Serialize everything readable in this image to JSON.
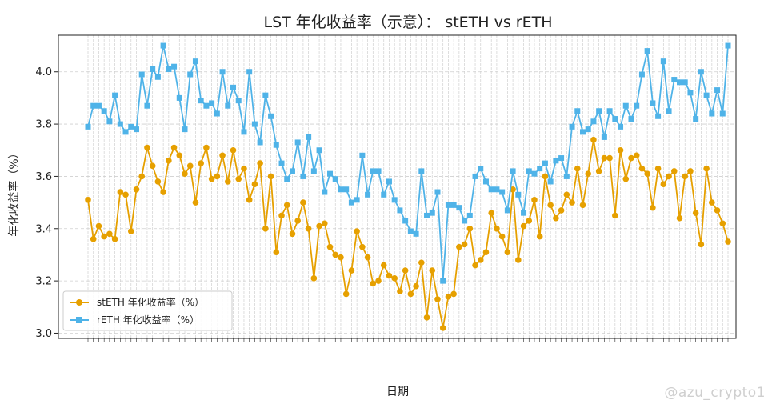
{
  "chart_data": {
    "type": "line",
    "title": "LST 年化收益率（示意）： stETH vs rETH",
    "xlabel": "日期",
    "ylabel": "年化收益率（%）",
    "ylim": [
      2.98,
      4.14
    ],
    "yticks": [
      "3.0",
      "3.2",
      "3.4",
      "3.6",
      "3.8",
      "4.0"
    ],
    "grid": true,
    "legend_position": "lower-left",
    "series": [
      {
        "name": "stETH 年化收益率（%）",
        "color": "#e6a000",
        "marker": "circle",
        "values": [
          3.51,
          3.36,
          3.41,
          3.37,
          3.38,
          3.36,
          3.54,
          3.53,
          3.39,
          3.55,
          3.6,
          3.71,
          3.64,
          3.58,
          3.54,
          3.66,
          3.71,
          3.68,
          3.61,
          3.64,
          3.5,
          3.65,
          3.71,
          3.59,
          3.6,
          3.68,
          3.58,
          3.7,
          3.59,
          3.63,
          3.51,
          3.57,
          3.65,
          3.4,
          3.6,
          3.31,
          3.45,
          3.49,
          3.38,
          3.43,
          3.5,
          3.4,
          3.21,
          3.41,
          3.42,
          3.33,
          3.3,
          3.29,
          3.15,
          3.24,
          3.39,
          3.33,
          3.29,
          3.19,
          3.2,
          3.26,
          3.22,
          3.21,
          3.16,
          3.24,
          3.15,
          3.18,
          3.27,
          3.06,
          3.24,
          3.13,
          3.02,
          3.14,
          3.15,
          3.33,
          3.34,
          3.4,
          3.26,
          3.28,
          3.31,
          3.46,
          3.4,
          3.37,
          3.31,
          3.55,
          3.28,
          3.41,
          3.43,
          3.51,
          3.37,
          3.6,
          3.49,
          3.44,
          3.47,
          3.53,
          3.5,
          3.63,
          3.49,
          3.61,
          3.74,
          3.62,
          3.67,
          3.67,
          3.45,
          3.7,
          3.59,
          3.67,
          3.68,
          3.63,
          3.61,
          3.48,
          3.63,
          3.57,
          3.6,
          3.62,
          3.44,
          3.6,
          3.62,
          3.46,
          3.34,
          3.63,
          3.5,
          3.47,
          3.42,
          3.35
        ]
      },
      {
        "name": "rETH 年化收益率（%）",
        "color": "#4fb3e8",
        "marker": "square",
        "values": [
          3.79,
          3.87,
          3.87,
          3.85,
          3.81,
          3.91,
          3.8,
          3.77,
          3.79,
          3.78,
          3.99,
          3.87,
          4.01,
          3.98,
          4.1,
          4.01,
          4.02,
          3.9,
          3.78,
          3.99,
          4.04,
          3.89,
          3.87,
          3.88,
          3.84,
          4.0,
          3.87,
          3.94,
          3.89,
          3.77,
          4.0,
          3.8,
          3.73,
          3.91,
          3.83,
          3.72,
          3.65,
          3.59,
          3.62,
          3.73,
          3.6,
          3.75,
          3.62,
          3.7,
          3.54,
          3.61,
          3.59,
          3.55,
          3.55,
          3.5,
          3.51,
          3.68,
          3.53,
          3.62,
          3.62,
          3.53,
          3.58,
          3.51,
          3.47,
          3.43,
          3.39,
          3.38,
          3.62,
          3.45,
          3.46,
          3.54,
          3.2,
          3.49,
          3.49,
          3.48,
          3.43,
          3.45,
          3.6,
          3.63,
          3.58,
          3.55,
          3.55,
          3.54,
          3.47,
          3.62,
          3.53,
          3.46,
          3.62,
          3.61,
          3.63,
          3.65,
          3.58,
          3.66,
          3.67,
          3.6,
          3.79,
          3.85,
          3.77,
          3.78,
          3.81,
          3.85,
          3.75,
          3.85,
          3.82,
          3.79,
          3.87,
          3.82,
          3.87,
          3.99,
          4.08,
          3.88,
          3.83,
          4.04,
          3.85,
          3.97,
          3.96,
          3.96,
          3.92,
          3.82,
          4.0,
          3.91,
          3.84,
          3.93,
          3.84,
          4.1
        ]
      }
    ]
  },
  "watermark": "@azu_crypto1"
}
